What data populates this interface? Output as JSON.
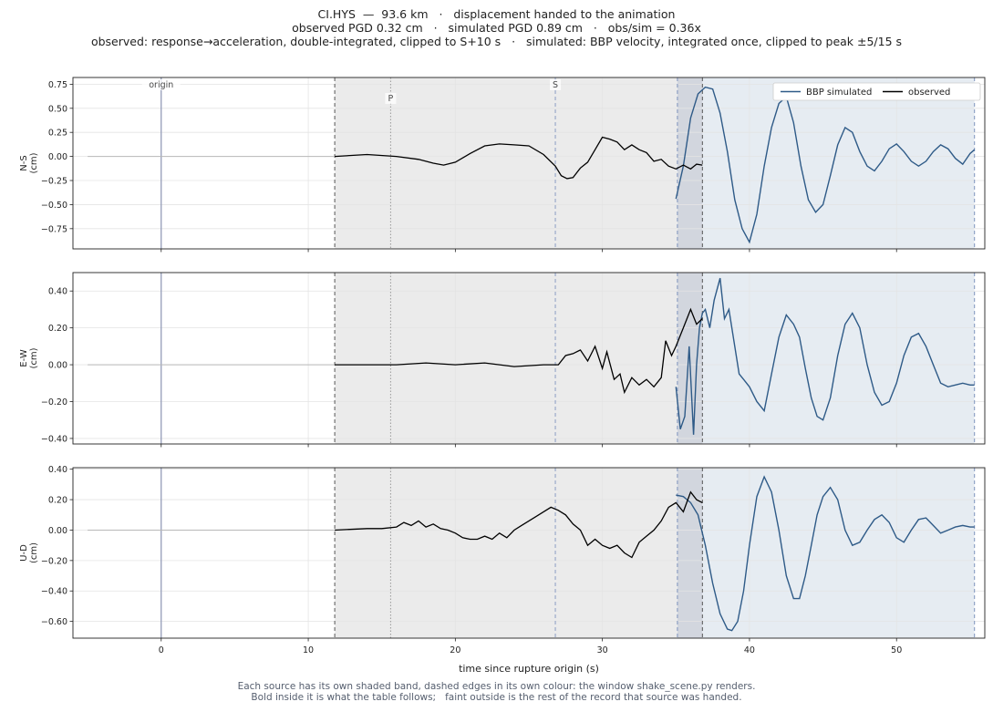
{
  "header": {
    "line1": "CI.HYS  —  93.6 km   ·   displacement handed to the animation",
    "line2": "observed PGD 0.32 cm   ·   simulated PGD 0.89 cm   ·   obs/sim = 0.36x",
    "line3": "observed: response→acceleration, double-integrated, clipped to S+10 s   ·   simulated: BBP velocity, integrated once, clipped to peak ±5/15 s"
  },
  "footer": {
    "line1": "Each source has its own shaded band, dashed edges in its own colour: the window shake_scene.py renders.",
    "line2": "Bold inside it is what the table follows;   faint outside is the rest of the record that source was handed."
  },
  "colors": {
    "simulated": "#2e5a87",
    "observed": "#000000",
    "origin_line": "#8c96b4",
    "obs_band": "#ebebeb",
    "sim_band": "#e6ecf2",
    "overlap_band": "#d2d6de",
    "obs_edge": "#555555",
    "sim_edge": "#7d93bd",
    "p_line": "#999999",
    "s_line": "#8a9cc4"
  },
  "chart_data": {
    "type": "line",
    "xlabel": "time since rupture origin (s)",
    "xlim": [
      -6,
      56
    ],
    "xticks": [
      0,
      10,
      20,
      30,
      40,
      50
    ],
    "grid": true,
    "legend": {
      "placement": "top-right",
      "entries": [
        "BBP simulated",
        "observed"
      ]
    },
    "markers": [
      {
        "label": "origin",
        "t": 0
      },
      {
        "label": "P",
        "t": 15.6
      },
      {
        "label": "S",
        "t": 26.8
      }
    ],
    "observed_window": [
      11.8,
      36.8
    ],
    "simulated_window": [
      35.1,
      55.3
    ],
    "panels": [
      {
        "ylabel": "N-S\n(cm)",
        "ylim": [
          -0.96,
          0.82
        ],
        "yticks": [
          -0.75,
          -0.5,
          -0.25,
          0.0,
          0.25,
          0.5,
          0.75
        ],
        "observed": {
          "t": [
            -5,
            0,
            5,
            10,
            11.8,
            14,
            16,
            17.5,
            18.5,
            19.2,
            20,
            21,
            22,
            23,
            24,
            25,
            26,
            26.8,
            27.2,
            27.6,
            28,
            28.5,
            29,
            29.5,
            30,
            30.5,
            31,
            31.5,
            32,
            32.5,
            33,
            33.5,
            34,
            34.5,
            35,
            35.5,
            36,
            36.4,
            36.8
          ],
          "v": [
            0,
            0,
            0,
            0,
            0.0,
            0.02,
            0.0,
            -0.03,
            -0.07,
            -0.09,
            -0.06,
            0.03,
            0.11,
            0.13,
            0.12,
            0.11,
            0.02,
            -0.1,
            -0.2,
            -0.23,
            -0.22,
            -0.12,
            -0.06,
            0.07,
            0.2,
            0.18,
            0.15,
            0.07,
            0.12,
            0.07,
            0.04,
            -0.05,
            -0.03,
            -0.1,
            -0.13,
            -0.09,
            -0.13,
            -0.08,
            -0.09
          ]
        },
        "simulated": {
          "t": [
            35.0,
            35.5,
            36.0,
            36.5,
            37.0,
            37.5,
            38.0,
            38.5,
            39.0,
            39.5,
            40.0,
            40.5,
            41.0,
            41.5,
            42.0,
            42.5,
            43.0,
            43.5,
            44.0,
            44.5,
            45.0,
            45.5,
            46.0,
            46.5,
            47.0,
            47.5,
            48.0,
            48.5,
            49.0,
            49.5,
            50.0,
            50.5,
            51.0,
            51.5,
            52.0,
            52.5,
            53.0,
            53.5,
            54.0,
            54.5,
            55.0,
            55.3
          ],
          "v": [
            -0.44,
            -0.1,
            0.4,
            0.65,
            0.72,
            0.7,
            0.45,
            0.05,
            -0.45,
            -0.75,
            -0.89,
            -0.6,
            -0.1,
            0.3,
            0.55,
            0.62,
            0.35,
            -0.1,
            -0.45,
            -0.58,
            -0.5,
            -0.2,
            0.12,
            0.3,
            0.25,
            0.05,
            -0.1,
            -0.15,
            -0.05,
            0.08,
            0.13,
            0.05,
            -0.05,
            -0.1,
            -0.05,
            0.05,
            0.12,
            0.08,
            -0.02,
            -0.08,
            0.03,
            0.07
          ]
        }
      },
      {
        "ylabel": "E-W\n(cm)",
        "ylim": [
          -0.43,
          0.5
        ],
        "yticks": [
          -0.4,
          -0.2,
          0.0,
          0.2,
          0.4
        ],
        "observed": {
          "t": [
            -5,
            0,
            5,
            10,
            11.8,
            14,
            16,
            18,
            20,
            22,
            24,
            26,
            27,
            27.5,
            28,
            28.5,
            29,
            29.5,
            30,
            30.3,
            30.8,
            31.2,
            31.5,
            32,
            32.5,
            33,
            33.5,
            34,
            34.3,
            34.7,
            35,
            35.5,
            36,
            36.4,
            36.8
          ],
          "v": [
            0,
            0,
            0,
            0,
            0.0,
            0.0,
            0.0,
            0.01,
            0.0,
            0.01,
            -0.01,
            0.0,
            0.0,
            0.05,
            0.06,
            0.08,
            0.02,
            0.1,
            -0.02,
            0.07,
            -0.08,
            -0.05,
            -0.15,
            -0.07,
            -0.11,
            -0.08,
            -0.12,
            -0.07,
            0.13,
            0.05,
            0.1,
            0.2,
            0.3,
            0.22,
            0.25
          ]
        },
        "simulated": {
          "t": [
            35.0,
            35.3,
            35.6,
            35.9,
            36.2,
            36.4,
            36.6,
            36.8,
            37.0,
            37.3,
            37.6,
            38.0,
            38.3,
            38.6,
            39.0,
            39.3,
            39.6,
            40.0,
            40.5,
            41.0,
            41.5,
            42.0,
            42.5,
            43.0,
            43.4,
            43.8,
            44.2,
            44.6,
            45.0,
            45.5,
            46.0,
            46.5,
            47.0,
            47.5,
            48.0,
            48.5,
            49.0,
            49.5,
            50.0,
            50.5,
            51.0,
            51.5,
            52.0,
            52.5,
            53.0,
            53.5,
            54.0,
            54.5,
            55.0,
            55.3
          ],
          "v": [
            -0.12,
            -0.35,
            -0.28,
            0.1,
            -0.38,
            0.0,
            0.2,
            0.28,
            0.3,
            0.2,
            0.35,
            0.47,
            0.25,
            0.3,
            0.1,
            -0.05,
            -0.08,
            -0.12,
            -0.2,
            -0.25,
            -0.05,
            0.15,
            0.27,
            0.22,
            0.15,
            -0.02,
            -0.18,
            -0.28,
            -0.3,
            -0.18,
            0.05,
            0.22,
            0.28,
            0.2,
            0.0,
            -0.15,
            -0.22,
            -0.2,
            -0.1,
            0.05,
            0.15,
            0.17,
            0.1,
            0.0,
            -0.1,
            -0.12,
            -0.11,
            -0.1,
            -0.11,
            -0.11
          ]
        }
      },
      {
        "ylabel": "U-D\n(cm)",
        "ylim": [
          -0.71,
          0.41
        ],
        "yticks": [
          -0.6,
          -0.4,
          -0.2,
          0.0,
          0.2,
          0.4
        ],
        "observed": {
          "t": [
            -5,
            0,
            5,
            10,
            11.8,
            14,
            15,
            16,
            16.5,
            17,
            17.5,
            18,
            18.5,
            19,
            19.5,
            20,
            20.5,
            21,
            21.5,
            22,
            22.5,
            23,
            23.5,
            24,
            24.5,
            25,
            25.5,
            26,
            26.5,
            27,
            27.5,
            28,
            28.5,
            29,
            29.5,
            30,
            30.5,
            31,
            31.5,
            32,
            32.5,
            33,
            33.5,
            34,
            34.5,
            35,
            35.5,
            36,
            36.4,
            36.8
          ],
          "v": [
            0,
            0,
            0,
            0,
            0.0,
            0.01,
            0.01,
            0.02,
            0.05,
            0.03,
            0.06,
            0.02,
            0.04,
            0.01,
            0.0,
            -0.02,
            -0.05,
            -0.06,
            -0.06,
            -0.04,
            -0.06,
            -0.02,
            -0.05,
            0.0,
            0.03,
            0.06,
            0.09,
            0.12,
            0.15,
            0.13,
            0.1,
            0.04,
            0.0,
            -0.1,
            -0.06,
            -0.1,
            -0.12,
            -0.1,
            -0.15,
            -0.18,
            -0.08,
            -0.04,
            0.0,
            0.06,
            0.15,
            0.18,
            0.12,
            0.25,
            0.2,
            0.18
          ]
        },
        "simulated": {
          "t": [
            35.0,
            35.5,
            36.0,
            36.5,
            37.0,
            37.5,
            38.0,
            38.5,
            38.8,
            39.2,
            39.6,
            40.0,
            40.5,
            41.0,
            41.5,
            42.0,
            42.5,
            43.0,
            43.4,
            43.8,
            44.2,
            44.6,
            45.0,
            45.5,
            46.0,
            46.5,
            47.0,
            47.5,
            48.0,
            48.5,
            49.0,
            49.5,
            50.0,
            50.5,
            51.0,
            51.5,
            52.0,
            52.5,
            53.0,
            53.5,
            54.0,
            54.5,
            55.0,
            55.3
          ],
          "v": [
            0.23,
            0.22,
            0.18,
            0.1,
            -0.1,
            -0.35,
            -0.55,
            -0.65,
            -0.66,
            -0.6,
            -0.4,
            -0.1,
            0.22,
            0.35,
            0.25,
            0.0,
            -0.3,
            -0.45,
            -0.45,
            -0.3,
            -0.1,
            0.1,
            0.22,
            0.28,
            0.2,
            0.0,
            -0.1,
            -0.08,
            0.0,
            0.07,
            0.1,
            0.05,
            -0.05,
            -0.08,
            0.0,
            0.07,
            0.08,
            0.03,
            -0.02,
            0.0,
            0.02,
            0.03,
            0.02,
            0.02
          ]
        }
      }
    ]
  }
}
